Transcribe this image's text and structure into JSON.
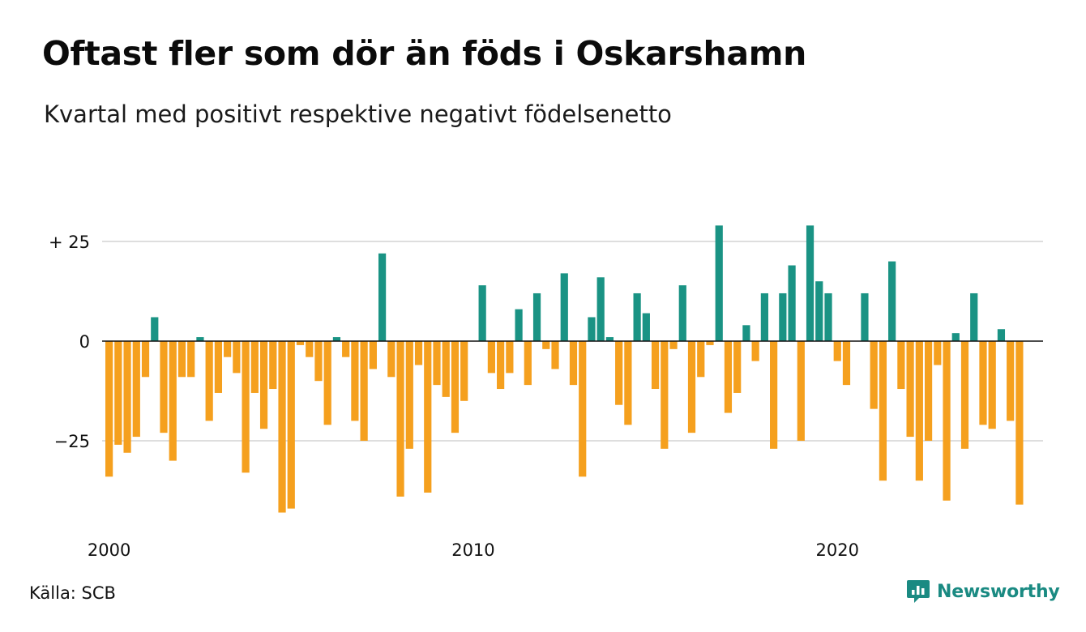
{
  "header": {
    "title": "Oftast fler som dör än föds i Oskarshamn",
    "subtitle": "Kvartal med positivt respektive negativt födelsenetto"
  },
  "footer": {
    "source": "Källa: SCB",
    "brand": "Newsworthy"
  },
  "chart_data": {
    "type": "bar",
    "title": "Oftast fler som dör än föds i Oskarshamn",
    "subtitle": "Kvartal med positivt respektive negativt födelsenetto",
    "x_tick_labels": [
      "2000",
      "2010",
      "2020"
    ],
    "y_tick_labels": [
      "+ 25",
      "0",
      "−25"
    ],
    "y_ticks": [
      25,
      0,
      -25
    ],
    "ylim": [
      -45,
      35
    ],
    "positive_color": "#1a9384",
    "negative_color": "#f5a01e",
    "grid": true,
    "categories": [
      "2000 K1",
      "2000 K2",
      "2000 K3",
      "2000 K4",
      "2001 K1",
      "2001 K2",
      "2001 K3",
      "2001 K4",
      "2002 K1",
      "2002 K2",
      "2002 K3",
      "2002 K4",
      "2003 K1",
      "2003 K2",
      "2003 K3",
      "2003 K4",
      "2004 K1",
      "2004 K2",
      "2004 K3",
      "2004 K4",
      "2005 K1",
      "2005 K2",
      "2005 K3",
      "2005 K4",
      "2006 K1",
      "2006 K2",
      "2006 K3",
      "2006 K4",
      "2007 K1",
      "2007 K2",
      "2007 K3",
      "2007 K4",
      "2008 K1",
      "2008 K2",
      "2008 K3",
      "2008 K4",
      "2009 K1",
      "2009 K2",
      "2009 K3",
      "2009 K4",
      "2010 K1",
      "2010 K2",
      "2010 K3",
      "2010 K4",
      "2011 K1",
      "2011 K2",
      "2011 K3",
      "2011 K4",
      "2012 K1",
      "2012 K2",
      "2012 K3",
      "2012 K4",
      "2013 K1",
      "2013 K2",
      "2013 K3",
      "2013 K4",
      "2014 K1",
      "2014 K2",
      "2014 K3",
      "2014 K4",
      "2015 K1",
      "2015 K2",
      "2015 K3",
      "2015 K4",
      "2016 K1",
      "2016 K2",
      "2016 K3",
      "2016 K4",
      "2017 K1",
      "2017 K2",
      "2017 K3",
      "2017 K4",
      "2018 K1",
      "2018 K2",
      "2018 K3",
      "2018 K4",
      "2019 K1",
      "2019 K2",
      "2019 K3",
      "2019 K4",
      "2020 K1",
      "2020 K2",
      "2020 K3",
      "2020 K4",
      "2021 K1",
      "2021 K2",
      "2021 K3",
      "2021 K4",
      "2022 K1",
      "2022 K2",
      "2022 K3",
      "2022 K4",
      "2023 K1",
      "2023 K2",
      "2023 K3",
      "2023 K4",
      "2024 K1",
      "2024 K2",
      "2024 K3",
      "2024 K4",
      "2025 K1",
      "2025 K2",
      "2025 K3"
    ],
    "values": [
      -34,
      -26,
      -28,
      -24,
      -9,
      6,
      -23,
      -30,
      -9,
      -9,
      1,
      -20,
      -13,
      -4,
      -8,
      -33,
      -13,
      -22,
      -12,
      -43,
      -42,
      -1,
      -4,
      -10,
      -21,
      1,
      -4,
      -20,
      -25,
      -7,
      22,
      -9,
      -39,
      -27,
      -6,
      -38,
      -11,
      -14,
      -23,
      -15,
      0,
      14,
      -8,
      -12,
      -8,
      8,
      -11,
      12,
      -2,
      -7,
      17,
      -11,
      -34,
      6,
      16,
      1,
      -16,
      -21,
      12,
      7,
      -12,
      -27,
      -2,
      14,
      -23,
      -9,
      -1,
      29,
      -18,
      -13,
      4,
      -5,
      12,
      -27,
      12,
      19,
      -25,
      29,
      15,
      12,
      -5,
      -11,
      0,
      12,
      -17,
      -35,
      20,
      -12,
      -24,
      -35,
      -25,
      -6,
      -40,
      2,
      -27,
      12,
      -21,
      -22,
      3,
      -20,
      -41,
      0,
      0
    ]
  }
}
